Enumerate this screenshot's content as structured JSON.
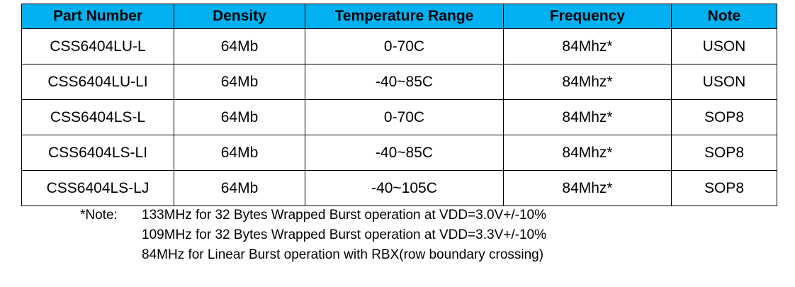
{
  "table": {
    "header": [
      "Part Number",
      "Density",
      "Temperature Range",
      "Frequency",
      "Note"
    ],
    "rows": [
      [
        "CSS6404LU-L",
        "64Mb",
        "0-70C",
        "84Mhz*",
        "USON"
      ],
      [
        "CSS6404LU-LI",
        "64Mb",
        "-40~85C",
        "84Mhz*",
        "USON"
      ],
      [
        "CSS6404LS-L",
        "64Mb",
        "0-70C",
        "84Mhz*",
        "SOP8"
      ],
      [
        "CSS6404LS-LI",
        "64Mb",
        "-40~85C",
        "84Mhz*",
        "SOP8"
      ],
      [
        "CSS6404LS-LJ",
        "64Mb",
        "-40~105C",
        "84Mhz*",
        "SOP8"
      ]
    ]
  },
  "note": {
    "label": "*Note:",
    "lines": [
      "133MHz for 32 Bytes Wrapped Burst operation at VDD=3.0V+/-10%",
      "109MHz for 32 Bytes Wrapped Burst operation at VDD=3.3V+/-10%",
      "84MHz for Linear Burst operation with RBX(row boundary crossing)"
    ]
  }
}
